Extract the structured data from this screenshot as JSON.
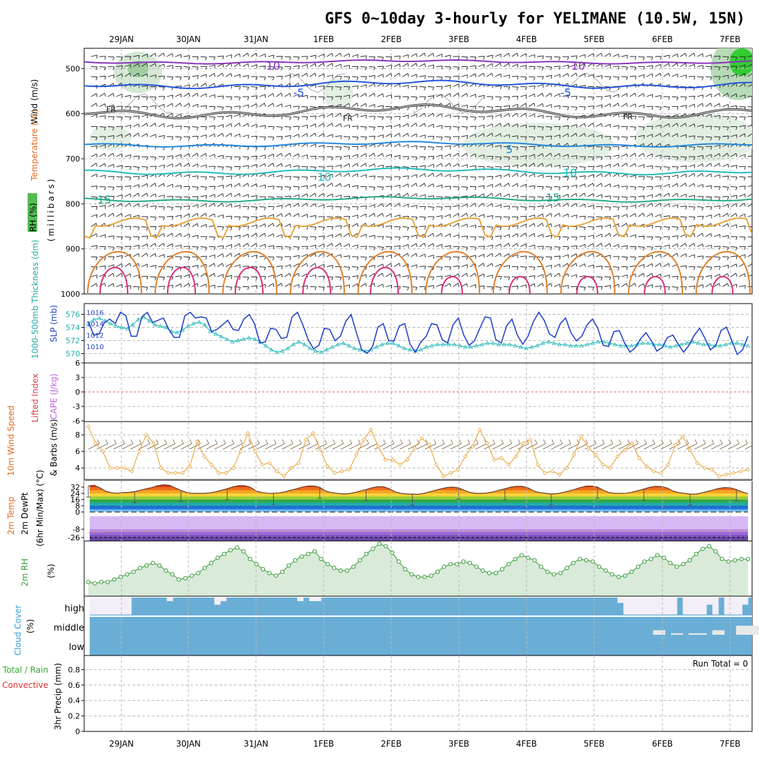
{
  "title": "GFS 0~10day 3-hourly for YELIMANE (10.5W, 15N)",
  "dates": [
    "29JAN",
    "30JAN",
    "31JAN",
    "1FEB",
    "2FEB",
    "3FEB",
    "4FEB",
    "5FEB",
    "6FEB",
    "7FEB"
  ],
  "colors": {
    "temp_lines": "#e8a33a",
    "freezing": "#222222",
    "slp": "#2244cc",
    "thickness": "#33bbbb",
    "wind_speed": "#e8a33a",
    "rh2m": "#3a9a3a",
    "cloud": "#6aaed6",
    "rh_fill": "#cfe5cf",
    "grid": "#aaaaaa"
  },
  "labels": {
    "p1_wind": "Wind (m/s)",
    "p1_temp": "Temperature (°C)",
    "p1_rh": "RH (%)",
    "p1_mb": "(millibars)",
    "p2_thick": "1000-500mb Thickness (dm)",
    "p2_slp": "SLP (mb)",
    "p3_li": "Lifted Index",
    "p3_cape": "CAPE (J/kg)",
    "p4_wind": "10m Wind Speed",
    "p4_unit": "& Barbs (m/s)",
    "p5_temp": "2m Temp",
    "p5_dew": "2m DewPt",
    "p5_minmax": "(6hr Min/Max) (°C)",
    "p6_rh": "2m RH",
    "p6_unit": "(%)",
    "p7_cloud": "Cloud Cover",
    "p7_unit": "(%)",
    "p8_total": "Total / Rain",
    "p8_conv": "Convective",
    "p8_precip": "3hr Precip (mm)",
    "run_total": "Run Total = 0"
  },
  "contour_labels": [
    "-10",
    "-10",
    "-5",
    "-5",
    "FR",
    "FR",
    "FR",
    "5",
    "10",
    "10",
    "15",
    "15"
  ],
  "chart_data": {
    "type": "meteogram",
    "panels": [
      {
        "name": "upper-air cross-section",
        "yaxis": "pressure (millibars)",
        "yticks": [
          "500",
          "600",
          "700",
          "800",
          "900",
          "1000"
        ],
        "isotherms_c": [
          -10,
          -5,
          0,
          5,
          10,
          15
        ],
        "isotherm_pressure_mb": [
          485,
          535,
          595,
          668,
          728,
          790
        ],
        "isotherm_wave_mb": [
          3,
          6,
          10,
          4,
          5,
          4
        ]
      },
      {
        "name": "SLP and thickness",
        "yticks": [
          "576",
          "574",
          "572",
          "570"
        ],
        "yticks_right": [
          "1016",
          "1014",
          "1012",
          "1010"
        ],
        "slp_mb": [
          1014.4,
          1012.0,
          1012.2,
          1014.2,
          1014.8,
          1014.0,
          1016.0,
          1015.4,
          1011.8,
          1011.8,
          1015.2,
          1016.0,
          1014.2,
          1014.6,
          1015.0,
          1013.0,
          1011.6,
          1011.6,
          1015.4,
          1016.0,
          1015.0,
          1015.2,
          1015.0,
          1012.6,
          1013.0,
          1013.8,
          1014.6,
          1013.0,
          1012.8,
          1014.8,
          1015.6,
          1014.0,
          1010.6,
          1010.8,
          1013.2,
          1013.0,
          1011.4,
          1011.6,
          1015.2,
          1016.0,
          1013.8,
          1011.2,
          1009.6,
          1010.2,
          1013.2,
          1013.0,
          1011.0,
          1011.8,
          1014.4,
          1015.6,
          1012.4,
          1009.4,
          1008.8,
          1010.0,
          1013.4,
          1014.0,
          1011.0,
          1011.0,
          1013.6,
          1014.0,
          1010.4,
          1009.0,
          1010.8,
          1011.8,
          1014.0,
          1013.8,
          1011.2,
          1010.6,
          1013.8,
          1015.0,
          1012.0,
          1010.2,
          1011.0,
          1013.2,
          1015.2,
          1015.0,
          1011.2,
          1010.6,
          1013.6,
          1014.8,
          1012.0,
          1010.4,
          1011.8,
          1014.4,
          1016.0,
          1014.6,
          1012.2,
          1011.6,
          1014.0,
          1015.0,
          1012.4,
          1011.0,
          1011.8,
          1013.8,
          1014.8,
          1013.2,
          1010.2,
          1010.0,
          1012.6,
          1012.8,
          1010.6,
          1009.0,
          1009.8,
          1011.4,
          1012.4,
          1011.0,
          1009.2,
          1009.8,
          1011.6,
          1012.0,
          1010.4,
          1009.0,
          1010.2,
          1012.0,
          1013.2,
          1011.4,
          1009.4,
          1010.2,
          1012.8,
          1013.4,
          1011.0,
          1008.6,
          1009.4,
          1011.8
        ],
        "thickness_dm": [
          574.6,
          575.2,
          575.4,
          575.0,
          574.6,
          574.2,
          574.0,
          573.8,
          574.4,
          575.2,
          575.6,
          575.0,
          574.4,
          574.2,
          574.0,
          573.4,
          573.2,
          573.6,
          574.2,
          574.6,
          574.8,
          574.4,
          573.4,
          573.0,
          572.6,
          572.2,
          571.8,
          572.0,
          572.2,
          572.4,
          572.2,
          571.8,
          571.2,
          570.6,
          570.2,
          570.4,
          570.8,
          571.4,
          571.8,
          571.4,
          570.8,
          570.4,
          570.2,
          570.6,
          571.0,
          571.4,
          571.6,
          571.2,
          570.8,
          570.6,
          570.4,
          570.6,
          571.0,
          571.4,
          571.6,
          571.6,
          571.2,
          570.8,
          570.6,
          570.4,
          570.6,
          571.0,
          571.2,
          571.4,
          571.4,
          571.4,
          571.4,
          571.2,
          571.0,
          571.0,
          571.2,
          571.4,
          571.6,
          571.6,
          571.4,
          571.4,
          571.4,
          571.2,
          571.0,
          570.8,
          571.0,
          571.2,
          571.6,
          571.8,
          571.6,
          571.4,
          571.4,
          571.2,
          571.2,
          571.2,
          571.4,
          571.6,
          571.8,
          571.8,
          571.6,
          571.4,
          571.2,
          571.2,
          571.2,
          571.4,
          571.6,
          571.6,
          571.4,
          571.4,
          571.2,
          571.0,
          571.2,
          571.4,
          571.6,
          571.8,
          571.6,
          571.4,
          571.4,
          571.2,
          571.2,
          571.4,
          571.6,
          571.6,
          571.4,
          571.2
        ]
      },
      {
        "name": "lifted index and CAPE",
        "yticks": [
          "6",
          "3",
          "0",
          "-3",
          "-6"
        ]
      },
      {
        "name": "10m wind speed",
        "yticks": [
          "8",
          "6",
          "4"
        ],
        "speed_ms": [
          9.0,
          7.0,
          6.0,
          4.0,
          4.0,
          4.0,
          3.6,
          6.0,
          8.0,
          7.0,
          4.0,
          3.4,
          3.4,
          3.4,
          4.2,
          7.2,
          5.4,
          4.4,
          3.4,
          3.4,
          4.0,
          6.0,
          8.2,
          6.0,
          4.4,
          4.6,
          3.6,
          3.0,
          4.0,
          4.6,
          7.4,
          8.2,
          6.2,
          4.2,
          3.4,
          3.6,
          3.8,
          5.6,
          7.4,
          8.6,
          6.6,
          5.0,
          5.0,
          4.4,
          5.0,
          6.4,
          7.6,
          6.8,
          4.4,
          3.0,
          3.4,
          3.8,
          5.4,
          6.6,
          8.6,
          7.0,
          5.0,
          5.2,
          4.4,
          5.4,
          7.0,
          7.4,
          4.4,
          3.4,
          3.6,
          3.2,
          4.0,
          5.6,
          7.8,
          6.4,
          5.6,
          4.4,
          4.0,
          5.4,
          6.2,
          7.0,
          5.2,
          4.2,
          3.6,
          3.4,
          4.4,
          6.8,
          7.8,
          6.2,
          4.6,
          4.0,
          3.8,
          3.0,
          3.2,
          3.4,
          3.6,
          3.8
        ]
      },
      {
        "name": "2m temperature and dew point",
        "yticks": [
          "32",
          "24",
          "16",
          "8",
          "0",
          "-8",
          "-26"
        ],
        "temp_c": [
          33.5,
          34.5,
          31.2,
          26.8,
          24.8,
          24.0,
          25.0,
          25.2,
          26.2,
          28.0,
          30.0,
          31.5,
          34.0,
          35.0,
          34.5,
          31.0,
          28.0,
          25.0,
          24.0,
          24.0,
          24.0,
          24.5,
          26.0,
          28.0,
          30.0,
          32.5,
          34.0,
          34.0,
          32.0,
          27.0,
          25.0,
          24.2,
          24.0,
          24.6,
          26.0,
          28.0,
          30.0,
          32.2,
          33.5,
          33.5,
          31.8,
          27.0,
          25.0,
          24.0,
          23.2,
          23.6,
          25.0,
          27.0,
          29.0,
          31.2,
          32.5,
          32.5,
          30.0,
          26.0,
          24.0,
          23.2,
          23.0,
          22.8,
          24.0,
          26.0,
          28.0,
          30.0,
          31.6,
          32.0,
          31.0,
          28.0,
          25.0,
          24.0,
          24.0,
          24.5,
          26.0,
          28.0,
          30.0,
          32.0,
          33.0,
          33.0,
          31.0,
          27.0,
          25.0,
          24.0,
          23.2,
          23.6,
          25.0,
          27.0,
          29.0,
          31.5,
          33.2,
          33.5,
          32.0,
          28.0,
          25.0,
          24.0,
          24.0,
          24.2,
          25.6,
          27.5,
          29.5,
          31.8,
          33.0,
          32.8,
          31.0,
          27.0,
          25.0,
          24.0,
          23.0,
          23.0,
          24.5,
          26.5,
          28.5,
          30.5,
          31.5,
          31.0,
          29.0,
          26.0,
          23.5
        ],
        "dewpoint_c": [
          -16,
          -14,
          -14,
          -13,
          -12,
          -12,
          -11,
          -12,
          -13,
          -13,
          -12,
          -12,
          -11,
          -11,
          -12,
          -13,
          -13,
          -12,
          -11,
          -11,
          -10,
          -11,
          -12,
          -12,
          -12,
          -11,
          -11,
          -12,
          -13,
          -13,
          -12,
          -11,
          -11,
          -12,
          -12,
          -12,
          -11,
          -11,
          -11,
          -12,
          -13,
          -13,
          -12,
          -12,
          -11,
          -11,
          -11,
          -12,
          -12,
          -12,
          -12,
          -11,
          -11,
          -12,
          -13,
          -13,
          -12,
          -11,
          -11,
          -12,
          -12,
          -12,
          -11,
          -11,
          -12,
          -13,
          -13,
          -12,
          -11,
          -11,
          -11,
          -12,
          -12,
          -12,
          -11,
          -11,
          -12,
          -13,
          -13,
          -12,
          -12,
          -11,
          -11,
          -12,
          -12,
          -12,
          -11,
          -11,
          -12,
          -12,
          -12,
          -11,
          -11,
          -11,
          -12,
          -12,
          -12,
          -11,
          -11,
          -11,
          -12,
          -12,
          -12,
          -12,
          -11,
          -11,
          -12,
          -12,
          -11,
          -11,
          -11,
          -12,
          -12,
          -12,
          -11,
          -11
        ]
      },
      {
        "name": "2m relative humidity",
        "rh_pct": [
          10,
          9,
          10,
          10,
          12,
          14,
          16,
          18,
          21,
          23,
          25,
          23,
          19,
          16,
          12,
          13,
          15,
          17,
          21,
          25,
          29,
          32,
          35,
          37,
          34,
          28,
          24,
          20,
          17,
          15,
          18,
          23,
          27,
          30,
          32,
          34,
          28,
          24,
          21,
          19,
          19,
          22,
          27,
          32,
          36,
          40,
          38,
          33,
          26,
          20,
          16,
          14,
          14,
          15,
          18,
          22,
          24,
          24,
          26,
          25,
          22,
          19,
          17,
          17,
          20,
          24,
          28,
          31,
          29,
          27,
          22,
          18,
          16,
          17,
          21,
          25,
          28,
          27,
          26,
          22,
          19,
          16,
          14,
          15,
          18,
          22,
          26,
          28,
          31,
          29,
          25,
          22,
          24,
          27,
          32,
          36,
          38,
          34,
          28,
          26,
          27,
          28,
          28
        ]
      },
      {
        "name": "cloud cover",
        "rows": [
          "high",
          "middle",
          "low"
        ],
        "high_clear": [
          0.95,
          0.95,
          0.95,
          0.95,
          0.95,
          0.95,
          0.95,
          0,
          0,
          0,
          0,
          0,
          0,
          0.2,
          0,
          0,
          0,
          0,
          0,
          0,
          0,
          0.4,
          0.2,
          0,
          0,
          0,
          0,
          0,
          0,
          0,
          0,
          0,
          0,
          0,
          0,
          0.2,
          0,
          0.2,
          0.2,
          0,
          0,
          0,
          0,
          0,
          0,
          0,
          0,
          0,
          0,
          0,
          0,
          0,
          0,
          0,
          0,
          0,
          0,
          0,
          0,
          0,
          0,
          0,
          0,
          0,
          0,
          0,
          0,
          0,
          0,
          0,
          0,
          0,
          0,
          0,
          0,
          0,
          0,
          0,
          0,
          0,
          0,
          0,
          0,
          0,
          0,
          0,
          0,
          0,
          0,
          0.3,
          0.95,
          0.95,
          0.95,
          0.95,
          0.95,
          0.95,
          0.95,
          0.95,
          0.95,
          0,
          0.95,
          0.95,
          0.95,
          0.95,
          0.4,
          0.95,
          0,
          0.95,
          0.95,
          0.95,
          0.4
        ],
        "middle_clear": [
          0,
          0,
          0,
          0,
          0,
          0,
          0,
          0,
          0,
          0,
          0,
          0,
          0,
          0,
          0,
          0,
          0,
          0,
          0,
          0,
          0,
          0,
          0,
          0,
          0,
          0,
          0,
          0,
          0,
          0,
          0,
          0,
          0,
          0,
          0,
          0,
          0,
          0,
          0,
          0,
          0,
          0,
          0,
          0,
          0,
          0,
          0,
          0,
          0,
          0,
          0,
          0,
          0,
          0,
          0,
          0,
          0,
          0,
          0,
          0,
          0,
          0,
          0,
          0,
          0,
          0,
          0,
          0,
          0,
          0,
          0,
          0,
          0,
          0,
          0,
          0,
          0,
          0,
          0,
          0,
          0,
          0,
          0,
          0,
          0,
          0,
          0,
          0,
          0,
          0,
          0,
          0,
          0,
          0,
          0,
          0.3,
          0.3,
          0,
          0.1,
          0.1,
          0,
          0.1,
          0.1,
          0.1,
          0,
          0.3,
          0.3,
          0,
          0,
          0.6,
          0.6,
          0.6,
          0.6,
          0.6,
          0.6
        ]
      },
      {
        "name": "3hr precipitation",
        "yticks": [
          "0.8",
          "0.6",
          "0.4",
          "0.2",
          "0"
        ],
        "precip_mm": []
      }
    ]
  }
}
